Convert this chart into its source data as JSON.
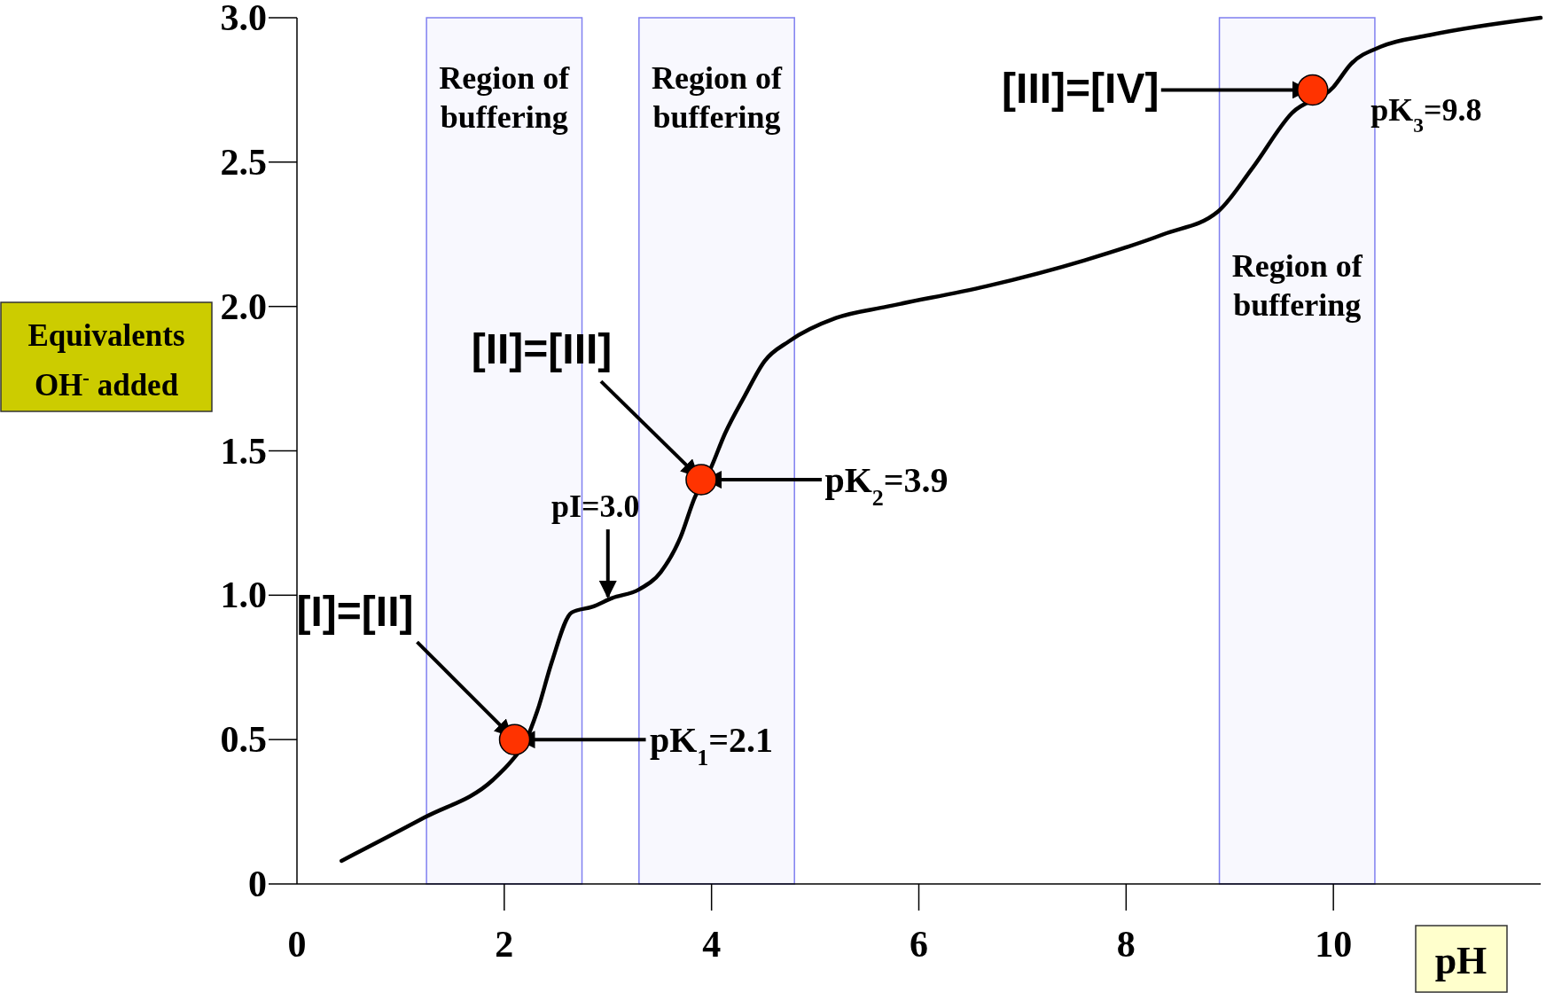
{
  "chart_data": {
    "type": "line",
    "xlabel": "pH",
    "ylabel": "Equivalents OH$^{-}$ added",
    "xlim": [
      0,
      12
    ],
    "ylim": [
      0,
      3
    ],
    "xticks": [
      0,
      2,
      4,
      6,
      8,
      10
    ],
    "yticks": [
      0,
      0.5,
      {
        "value": 1,
        "label": "1.0"
      },
      1.5,
      {
        "value": 2,
        "label": "2.0"
      },
      2.5,
      {
        "value": 3,
        "label": "3.0"
      }
    ],
    "grid": false,
    "marker": "none",
    "line_style": "solid",
    "series": [
      {
        "color": "#000000",
        "x": [
          0.43,
          1.23,
          1.89,
          2.08,
          2.2,
          2.32,
          2.46,
          2.65,
          2.85,
          3.04,
          3.3,
          3.51,
          3.7,
          3.84,
          3.98,
          4.13,
          4.32,
          4.51,
          4.75,
          5.2,
          5.7,
          6.65,
          7.6,
          8.36,
          8.89,
          9.22,
          9.6,
          10.0,
          10.17,
          10.46,
          10.93,
          12.0
        ],
        "values": [
          0.08,
          0.23,
          0.36,
          0.43,
          0.49,
          0.6,
          0.77,
          0.94,
          0.96,
          0.99,
          1.02,
          1.08,
          1.2,
          1.34,
          1.43,
          1.56,
          1.69,
          1.81,
          1.88,
          1.96,
          2.0,
          2.07,
          2.16,
          2.25,
          2.33,
          2.48,
          2.67,
          2.76,
          2.84,
          2.9,
          2.94,
          3.0
        ]
      },
      {
        "type": "scatter",
        "color": "#ff3300",
        "marker": "circle",
        "x": [
          2.1,
          3.9,
          9.8
        ],
        "values": [
          0.5,
          1.4,
          2.75
        ]
      }
    ],
    "bands": [
      {
        "axis": "x",
        "from": 1.25,
        "to": 2.75,
        "label": "Region of buffering",
        "color": "#8080f0"
      },
      {
        "axis": "x",
        "from": 3.3,
        "to": 4.8,
        "label": "Region of buffering",
        "color": "#8080f0"
      },
      {
        "axis": "x",
        "from": 8.9,
        "to": 10.4,
        "label": "Region of buffering",
        "color": "#8080f0"
      }
    ],
    "annotations": [
      {
        "text": "[I]=[II]",
        "x": 2.1,
        "y": 0.5
      },
      "pK$_{1}$=2.1",
      {
        "text": "[II]=[III]",
        "x": 3.9,
        "y": 1.4
      },
      "pK$_{2}$=3.9",
      "[III]=[IV]",
      {
        "text": "pK$_{3}$=9.8",
        "x": 9.8,
        "y": 2.75
      },
      {
        "text": "pI=3.0",
        "x": 3.0,
        "y": 0.97
      }
    ]
  }
}
